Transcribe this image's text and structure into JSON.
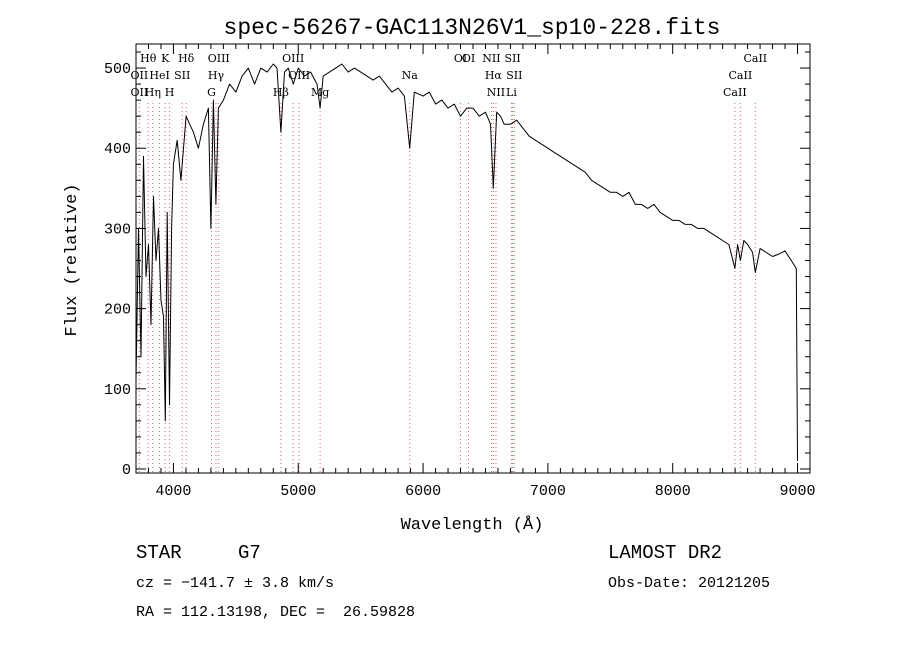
{
  "chart_data": {
    "type": "line",
    "title": "spec-56267-GAC113N26V1_sp10-228.fits",
    "xlabel": "Wavelength (Å)",
    "ylabel": "Flux (relative)",
    "xlim": [
      3700,
      9100
    ],
    "ylim": [
      -5,
      530
    ],
    "x_ticks": [
      4000,
      5000,
      6000,
      7000,
      8000,
      9000
    ],
    "y_ticks": [
      0,
      100,
      200,
      300,
      400,
      500
    ],
    "grid": false,
    "series": [
      {
        "x": [
          3700,
          3720,
          3740,
          3760,
          3780,
          3800,
          3820,
          3840,
          3860,
          3880,
          3900,
          3920,
          3935,
          3950,
          3968,
          3985,
          4000,
          4030,
          4060,
          4101,
          4130,
          4160,
          4200,
          4240,
          4280,
          4300,
          4320,
          4340,
          4360,
          4400,
          4450,
          4500,
          4550,
          4600,
          4650,
          4700,
          4750,
          4800,
          4830,
          4861,
          4890,
          4920,
          4960,
          5000,
          5050,
          5100,
          5150,
          5175,
          5200,
          5250,
          5300,
          5350,
          5400,
          5450,
          5500,
          5550,
          5600,
          5650,
          5700,
          5750,
          5800,
          5850,
          5893,
          5930,
          6000,
          6050,
          6100,
          6150,
          6200,
          6250,
          6300,
          6350,
          6400,
          6450,
          6500,
          6540,
          6563,
          6590,
          6620,
          6650,
          6700,
          6750,
          6800,
          6850,
          6900,
          6950,
          7000,
          7050,
          7100,
          7150,
          7200,
          7250,
          7300,
          7350,
          7400,
          7450,
          7500,
          7550,
          7600,
          7650,
          7700,
          7750,
          7800,
          7850,
          7900,
          7950,
          8000,
          8050,
          8100,
          8150,
          8200,
          8250,
          8300,
          8350,
          8400,
          8450,
          8498,
          8520,
          8542,
          8570,
          8600,
          8640,
          8662,
          8700,
          8750,
          8800,
          8850,
          8900,
          8950,
          8990,
          9000
        ],
        "y": [
          110,
          300,
          140,
          390,
          240,
          280,
          180,
          340,
          260,
          300,
          210,
          190,
          60,
          320,
          80,
          300,
          380,
          410,
          360,
          440,
          430,
          420,
          400,
          430,
          450,
          300,
          460,
          330,
          450,
          460,
          480,
          470,
          490,
          500,
          480,
          500,
          495,
          505,
          500,
          420,
          495,
          500,
          480,
          500,
          490,
          495,
          480,
          450,
          490,
          495,
          500,
          505,
          495,
          500,
          495,
          490,
          485,
          490,
          480,
          470,
          475,
          465,
          400,
          470,
          465,
          470,
          455,
          460,
          450,
          455,
          440,
          450,
          450,
          440,
          445,
          430,
          350,
          445,
          440,
          430,
          430,
          435,
          425,
          415,
          410,
          405,
          400,
          395,
          390,
          385,
          380,
          375,
          370,
          360,
          355,
          350,
          345,
          345,
          340,
          345,
          330,
          330,
          325,
          330,
          320,
          315,
          310,
          310,
          305,
          305,
          300,
          300,
          295,
          290,
          285,
          280,
          250,
          280,
          260,
          285,
          280,
          270,
          245,
          275,
          270,
          265,
          268,
          272,
          260,
          250,
          10
        ]
      }
    ],
    "lines": [
      {
        "label": "Hθ",
        "x": 3798,
        "row": 0
      },
      {
        "label": "OII",
        "x": 3727,
        "row": 1
      },
      {
        "label": "OII",
        "x": 3727,
        "row": 2
      },
      {
        "label": "Hη",
        "x": 3835,
        "row": 2
      },
      {
        "label": "K",
        "x": 3934,
        "row": 0
      },
      {
        "label": "HeI",
        "x": 3889,
        "row": 1
      },
      {
        "label": "H",
        "x": 3969,
        "row": 2
      },
      {
        "label": "SII",
        "x": 4070,
        "row": 1
      },
      {
        "label": "Hδ",
        "x": 4102,
        "row": 0
      },
      {
        "label": "OIII",
        "x": 4363,
        "row": 0
      },
      {
        "label": "Hγ",
        "x": 4341,
        "row": 1
      },
      {
        "label": "G",
        "x": 4305,
        "row": 2
      },
      {
        "label": "Hβ",
        "x": 4861,
        "row": 2
      },
      {
        "label": "OIII",
        "x": 4959,
        "row": 0
      },
      {
        "label": "OIII",
        "x": 5007,
        "row": 1
      },
      {
        "label": "Mg",
        "x": 5175,
        "row": 2
      },
      {
        "label": "Na",
        "x": 5893,
        "row": 1
      },
      {
        "label": "OI",
        "x": 6300,
        "row": 0
      },
      {
        "label": "OI",
        "x": 6364,
        "row": 0
      },
      {
        "label": "NII",
        "x": 6548,
        "row": 0
      },
      {
        "label": "SII",
        "x": 6717,
        "row": 0
      },
      {
        "label": "Hα",
        "x": 6563,
        "row": 1
      },
      {
        "label": "SII",
        "x": 6731,
        "row": 1
      },
      {
        "label": "NII",
        "x": 6584,
        "row": 2
      },
      {
        "label": "Li",
        "x": 6708,
        "row": 2
      },
      {
        "label": "CaII",
        "x": 8662,
        "row": 0
      },
      {
        "label": "CaII",
        "x": 8542,
        "row": 1
      },
      {
        "label": "CaII",
        "x": 8498,
        "row": 2
      }
    ]
  },
  "info": {
    "class": "STAR",
    "subclass": "G7",
    "survey": "LAMOST DR2",
    "cz": "cz = −141.7 ± 3.8 km/s",
    "obs_date": "Obs-Date: 20121205",
    "coords": "RA = 112.13198, DEC =  26.59828"
  }
}
